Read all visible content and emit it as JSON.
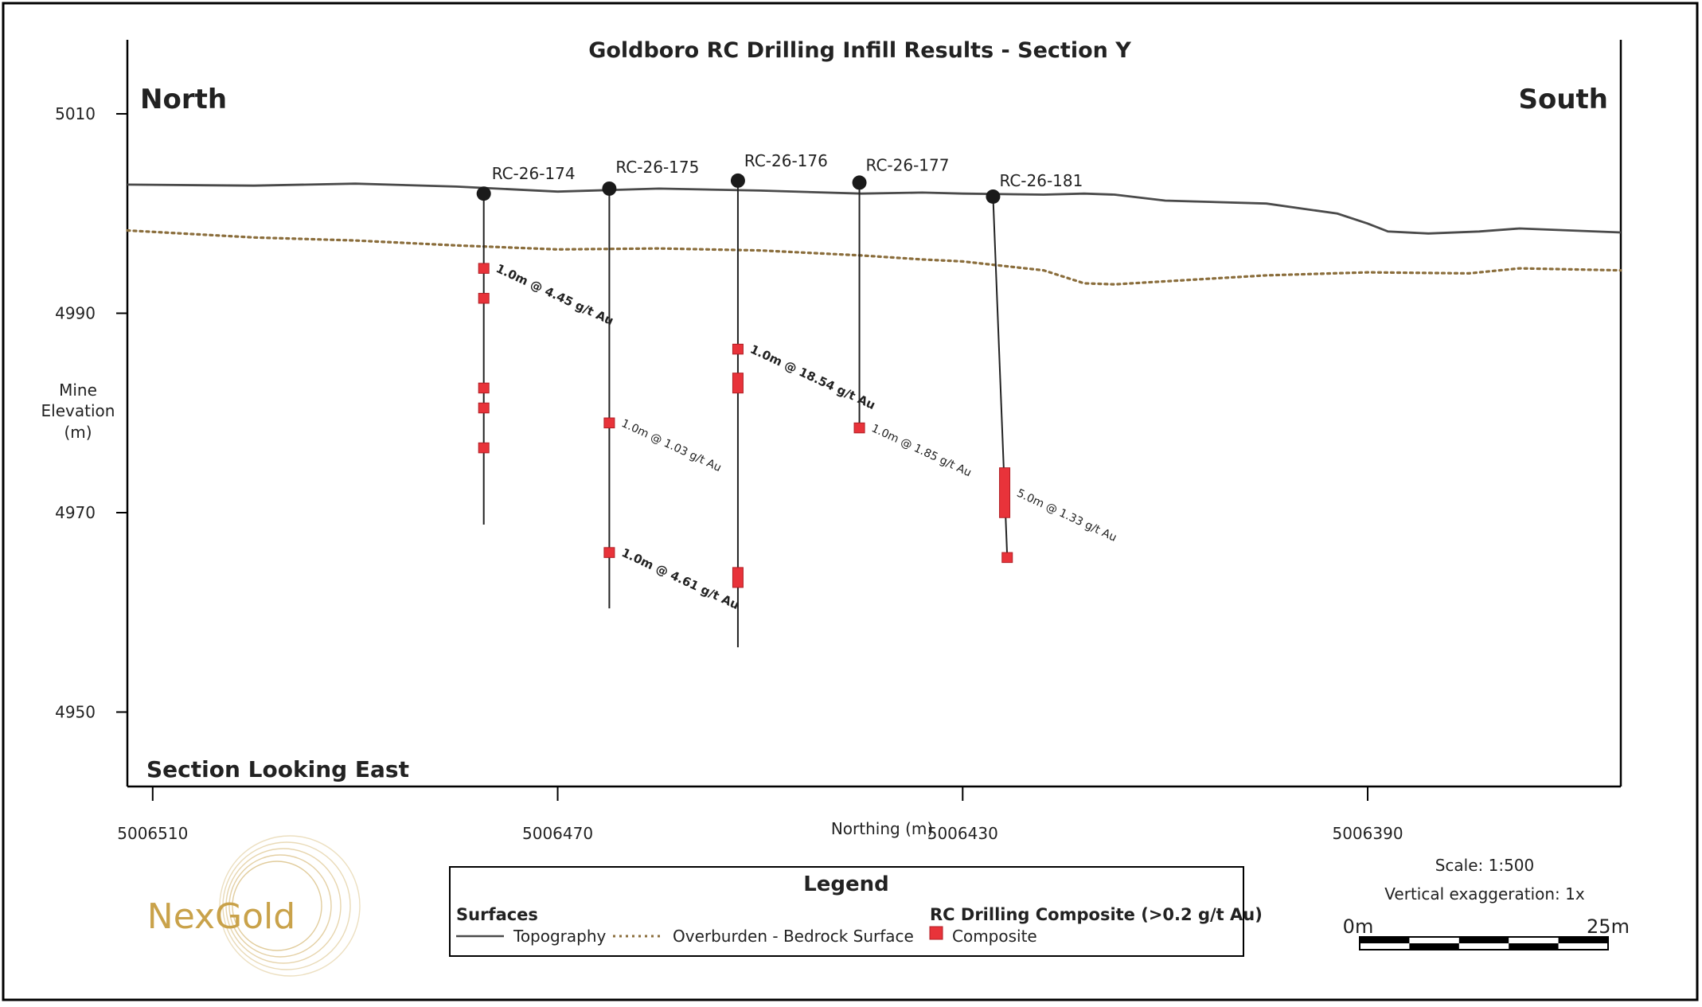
{
  "title": "Goldboro RC Drilling Infill Results - Section Y",
  "direction_left": "North",
  "direction_right": "South",
  "view_label": "Section Looking East",
  "y_axis": {
    "label_lines": [
      "Mine",
      "Elevation",
      "(m)"
    ],
    "ticks": [
      5010,
      4990,
      4970,
      4950
    ],
    "range": [
      4943,
      5017
    ]
  },
  "x_axis": {
    "label": "Northing (m)",
    "ticks": [
      5006510,
      5006470,
      5006430,
      5006390
    ],
    "range_left": 5006512.5,
    "range_right": 5006365
  },
  "colors": {
    "topography": "#4a4a4a",
    "overburden": "#8a6d3b",
    "composite": "#e8333a",
    "composite_stroke": "#b01e24",
    "collar": "#1a1a1a",
    "frame": "#000000",
    "nexgold": "#c9a24a"
  },
  "topography": [
    [
      5006512.5,
      5002.9
    ],
    [
      5006500,
      5002.8
    ],
    [
      5006490,
      5003.0
    ],
    [
      5006480,
      5002.7
    ],
    [
      5006470,
      5002.2
    ],
    [
      5006460,
      5002.5
    ],
    [
      5006450,
      5002.3
    ],
    [
      5006440,
      5002.0
    ],
    [
      5006434,
      5002.1
    ],
    [
      5006430,
      5002.0
    ],
    [
      5006422,
      5001.9
    ],
    [
      5006418,
      5002.0
    ],
    [
      5006415,
      5001.9
    ],
    [
      5006410,
      5001.3
    ],
    [
      5006400,
      5001.0
    ],
    [
      5006393,
      5000.0
    ],
    [
      5006390,
      4999.0
    ],
    [
      5006388,
      4998.2
    ],
    [
      5006384,
      4998.0
    ],
    [
      5006379,
      4998.2
    ],
    [
      5006375,
      4998.5
    ],
    [
      5006370,
      4998.3
    ],
    [
      5006365,
      4998.1
    ]
  ],
  "overburden": [
    [
      5006512.5,
      4998.3
    ],
    [
      5006500,
      4997.6
    ],
    [
      5006490,
      4997.3
    ],
    [
      5006480,
      4996.8
    ],
    [
      5006470,
      4996.4
    ],
    [
      5006460,
      4996.5
    ],
    [
      5006450,
      4996.3
    ],
    [
      5006440,
      4995.8
    ],
    [
      5006434,
      4995.4
    ],
    [
      5006430,
      4995.2
    ],
    [
      5006422,
      4994.3
    ],
    [
      5006418,
      4993.0
    ],
    [
      5006415,
      4992.9
    ],
    [
      5006410,
      4993.2
    ],
    [
      5006400,
      4993.8
    ],
    [
      5006390,
      4994.1
    ],
    [
      5006380,
      4994.0
    ],
    [
      5006375,
      4994.5
    ],
    [
      5006365,
      4994.3
    ]
  ],
  "holes": [
    {
      "id": "RC-26-174",
      "label": "RC-26-174",
      "collar": [
        5006477.3,
        5002.0
      ],
      "toe": [
        5006477.3,
        4968.8
      ],
      "composites": [
        [
          4995.0,
          4994.0
        ],
        [
          4992.0,
          4991.0
        ],
        [
          4983.0,
          4982.0
        ],
        [
          4981.0,
          4980.0
        ],
        [
          4977.0,
          4976.0
        ]
      ],
      "annotation": {
        "text": "1.0m @ 4.45 g/t Au",
        "bold": true,
        "anchor": [
          4994.5
        ]
      }
    },
    {
      "id": "RC-26-175",
      "label": "RC-26-175",
      "collar": [
        5006464.9,
        5002.5
      ],
      "toe": [
        5006464.9,
        4960.4
      ],
      "composites": [
        [
          4979.5,
          4978.5
        ],
        [
          4966.5,
          4965.5
        ]
      ],
      "annotation": {
        "text": "1.0m @ 1.03 g/t Au",
        "bold": false,
        "anchor": [
          4979.0
        ]
      },
      "annotation2": {
        "text": "1.0m @ 4.61 g/t Au",
        "bold": true,
        "anchor": [
          4966.0
        ]
      }
    },
    {
      "id": "RC-26-176",
      "label": "RC-26-176",
      "collar": [
        5006452.2,
        5003.3
      ],
      "toe": [
        5006452.2,
        4956.5
      ],
      "composites": [
        [
          4986.9,
          4985.9
        ],
        [
          4984.0,
          4982.0
        ],
        [
          4964.5,
          4962.5
        ]
      ],
      "annotation": {
        "text": "1.0m @ 18.54 g/t Au",
        "bold": true,
        "anchor": [
          4986.4
        ]
      }
    },
    {
      "id": "RC-26-177",
      "label": "RC-26-177",
      "collar": [
        5006440.2,
        5003.1
      ],
      "toe": [
        5006440.2,
        4979.0
      ],
      "composites": [
        [
          4979.0,
          4978.0
        ]
      ],
      "annotation": {
        "text": "1.0m @ 1.85 g/t Au",
        "bold": false,
        "anchor": [
          4978.5
        ]
      }
    },
    {
      "id": "RC-26-181",
      "label": "RC-26-181",
      "collar": [
        5006427.0,
        5001.7
      ],
      "toe": [
        5006425.6,
        4965.5
      ],
      "composites": [
        [
          4974.5,
          4969.5
        ],
        [
          4966.0,
          4965.0
        ]
      ],
      "annotation": {
        "text": "5.0m @ 1.33 g/t Au",
        "bold": false,
        "anchor": [
          4972.0
        ]
      }
    }
  ],
  "legend": {
    "title": "Legend",
    "surfaces_heading": "Surfaces",
    "topography_label": "Topography",
    "overburden_label": "Overburden - Bedrock Surface",
    "composite_heading": "RC Drilling Composite (>0.2 g/t Au)",
    "composite_label": "Composite"
  },
  "scale": {
    "text": "Scale: 1:500",
    "exaggeration": "Vertical exaggeration: 1x",
    "start_label": "0m",
    "end_label": "25m"
  },
  "logo": {
    "text": "NexGold"
  }
}
